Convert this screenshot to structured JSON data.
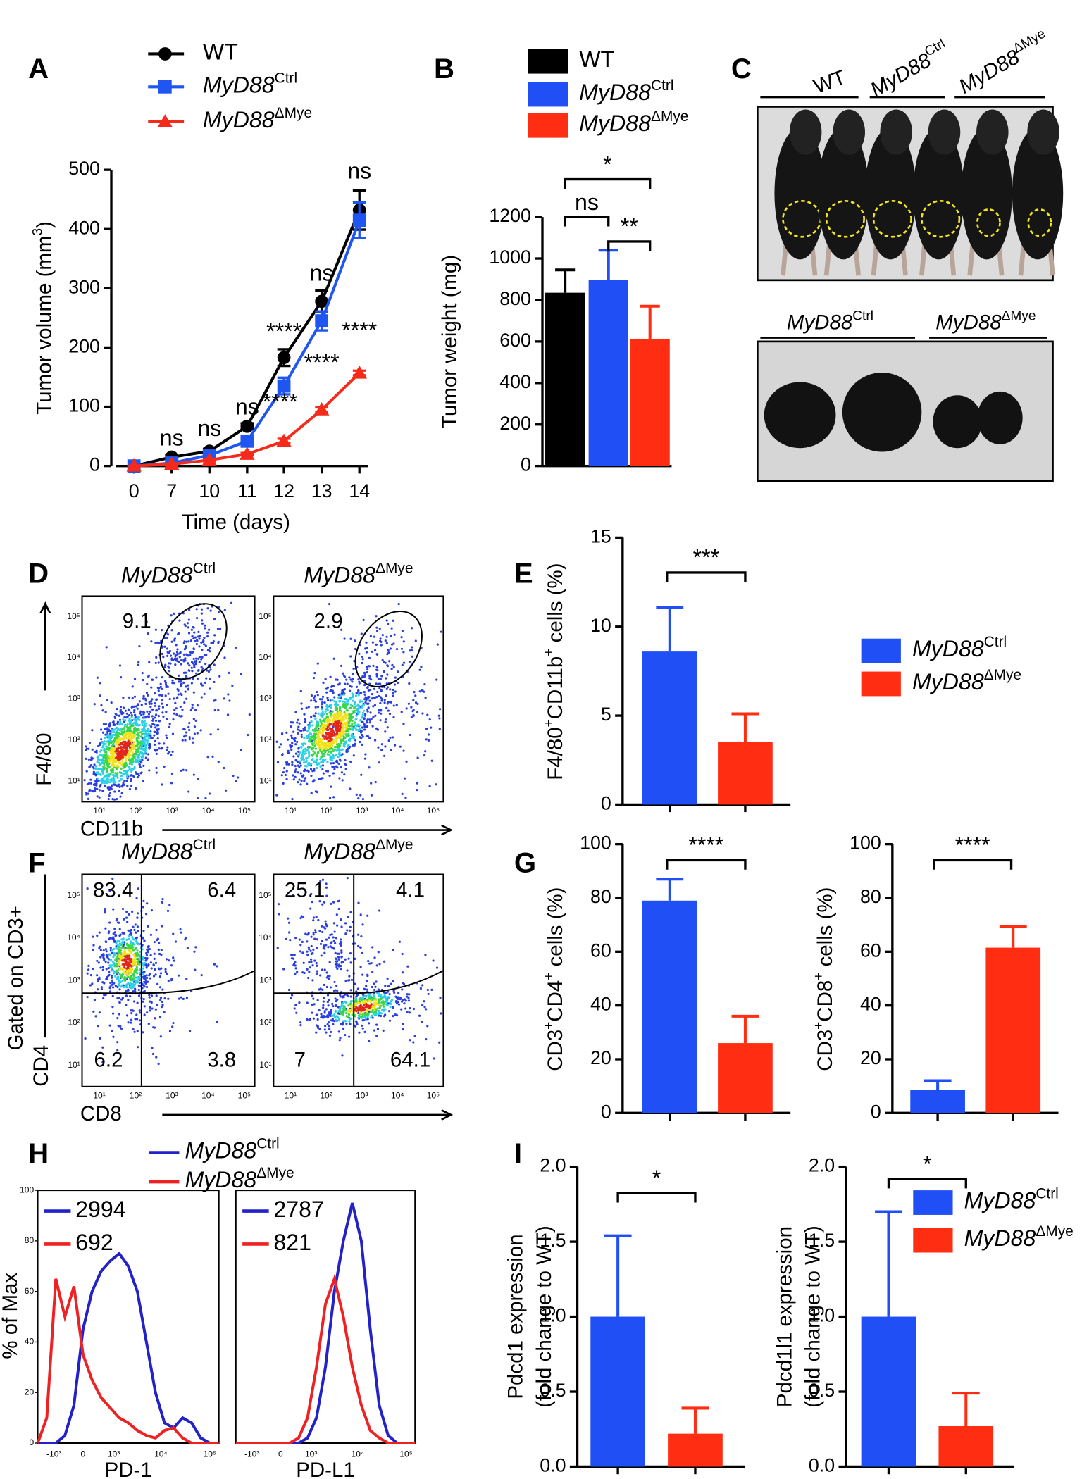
{
  "chart_data": [
    {
      "panel": "A",
      "type": "line",
      "xlabel": "Time (days)",
      "ylabel": [
        "Tumor volume (mm",
        "3",
        ")"
      ],
      "categories": [
        "0",
        "7",
        "10",
        "11",
        "12",
        "13",
        "14"
      ],
      "ylim": [
        0,
        500
      ],
      "yticks": [
        0,
        100,
        200,
        300,
        400,
        500
      ],
      "series": [
        {
          "name": [
            "WT"
          ],
          "color": "#000000",
          "marker": "circle",
          "values": [
            0,
            15,
            25,
            67,
            183,
            278,
            432
          ],
          "errors": [
            0,
            3,
            4,
            5,
            14,
            18,
            33
          ]
        },
        {
          "name": [
            "MyD88",
            "Ctrl"
          ],
          "color": "#1f55f0",
          "marker": "square",
          "values": [
            0,
            5,
            18,
            42,
            135,
            245,
            415
          ],
          "errors": [
            0,
            2,
            3,
            4,
            14,
            16,
            30
          ]
        },
        {
          "name": [
            "MyD88",
            "ΔMye"
          ],
          "color": "#f52a1a",
          "marker": "triangle",
          "values": [
            0,
            3,
            10,
            20,
            42,
            95,
            157
          ],
          "errors": [
            0,
            1,
            2,
            2,
            4,
            4,
            4
          ]
        }
      ],
      "annotations": [
        "ns",
        "ns",
        "ns",
        "****",
        "ns",
        "ns",
        "****",
        "****",
        "****"
      ]
    },
    {
      "panel": "B",
      "type": "bar",
      "ylabel": [
        "Tumor weight (mg)"
      ],
      "ylim": [
        0,
        1200
      ],
      "yticks": [
        0,
        200,
        400,
        600,
        800,
        1000,
        1200
      ],
      "legend": true,
      "series": [
        {
          "name": [
            "WT"
          ],
          "color": "#000000",
          "values": [
            835
          ],
          "errors": [
            110
          ]
        },
        {
          "name": [
            "MyD88",
            "Ctrl"
          ],
          "color": "#1f4ff5",
          "values": [
            895
          ],
          "errors": [
            145
          ]
        },
        {
          "name": [
            "MyD88",
            "ΔMye"
          ],
          "color": "#ff2d12",
          "values": [
            610
          ],
          "errors": [
            160
          ]
        }
      ],
      "annotations": [
        "*",
        "ns",
        "**"
      ]
    },
    {
      "panel": "C",
      "type": "photo",
      "top_labels": [
        [
          "WT"
        ],
        [
          "MyD88",
          "Ctrl"
        ],
        [
          "MyD88",
          "ΔMye"
        ]
      ],
      "bottom_labels": [
        [
          "MyD88",
          "Ctrl"
        ],
        [
          "MyD88",
          "ΔMye"
        ]
      ]
    },
    {
      "panel": "D",
      "type": "flow",
      "titles": [
        [
          "MyD88",
          "Ctrl"
        ],
        [
          "MyD88",
          "ΔMye"
        ]
      ],
      "gates": [
        9.1,
        2.9
      ],
      "xlabel": "CD11b",
      "ylabel": "F4/80",
      "ticks": [
        "10¹",
        "10²",
        "10³",
        "10⁴",
        "10⁵"
      ]
    },
    {
      "panel": "E",
      "type": "bar",
      "ylabel": [
        "F4/80",
        "+",
        "CD11b",
        "+",
        " cells (%)"
      ],
      "ylim": [
        0,
        15
      ],
      "yticks": [
        0,
        5,
        10,
        15
      ],
      "legend": true,
      "series": [
        {
          "name": [
            "MyD88",
            "Ctrl"
          ],
          "color": "#1f4ff5",
          "values": [
            8.6
          ],
          "errors": [
            2.5
          ]
        },
        {
          "name": [
            "MyD88",
            "ΔMye"
          ],
          "color": "#ff2d12",
          "values": [
            3.5
          ],
          "errors": [
            1.6
          ]
        }
      ],
      "annotations": [
        "***"
      ]
    },
    {
      "panel": "F",
      "type": "flow",
      "titles": [
        [
          "MyD88",
          "Ctrl"
        ],
        [
          "MyD88",
          "ΔMye"
        ]
      ],
      "quadrants": [
        [
          83.4,
          6.4,
          6.2,
          3.8
        ],
        [
          25.1,
          4.1,
          7,
          64.1
        ]
      ],
      "xlabel": "CD8",
      "ylabel": [
        "Gated on CD3+",
        "CD4"
      ],
      "ticks": [
        "10¹",
        "10²",
        "10³",
        "10⁴",
        "10⁵"
      ]
    },
    {
      "panel": "G",
      "type": "bar",
      "ylabel": [
        "CD3",
        "+",
        "CD4",
        "+",
        " cells (%)"
      ],
      "ylim": [
        0,
        100
      ],
      "yticks": [
        0,
        20,
        40,
        60,
        80,
        100
      ],
      "legend": false,
      "series": [
        {
          "name": [
            "MyD88",
            "Ctrl"
          ],
          "color": "#1f4ff5",
          "values": [
            79
          ],
          "errors": [
            8
          ]
        },
        {
          "name": [
            "MyD88",
            "ΔMye"
          ],
          "color": "#ff2d12",
          "values": [
            26
          ],
          "errors": [
            10
          ]
        }
      ],
      "annotations": [
        "****"
      ]
    },
    {
      "type": "bar",
      "ylabel": [
        "CD3",
        "+",
        "CD8",
        "+",
        " cells (%)"
      ],
      "ylim": [
        0,
        100
      ],
      "yticks": [
        0,
        20,
        40,
        60,
        80,
        100
      ],
      "legend": false,
      "series": [
        {
          "name": [
            "MyD88",
            "Ctrl"
          ],
          "color": "#1f4ff5",
          "values": [
            8.5
          ],
          "errors": [
            3.5
          ]
        },
        {
          "name": [
            "MyD88",
            "ΔMye"
          ],
          "color": "#ff2d12",
          "values": [
            61.5
          ],
          "errors": [
            8
          ]
        }
      ],
      "annotations": [
        "****"
      ]
    },
    {
      "panel": "H",
      "type": "histogram-overlay",
      "ylabel": "% of Max",
      "ylim": [
        0,
        100
      ],
      "yticks": [
        0,
        20,
        40,
        60,
        80,
        100
      ],
      "xticks": [
        "-10³",
        "0",
        "10³",
        "10⁴",
        "10⁵"
      ],
      "series": [
        {
          "name": [
            "MyD88",
            "Ctrl"
          ],
          "color": "#2222c8"
        },
        {
          "name": [
            "MyD88",
            "ΔMye"
          ],
          "color": "#ee2222"
        }
      ],
      "plots": [
        {
          "xlabel": "PD-1",
          "labels": [
            2994,
            692
          ],
          "values": [
            [
              0,
              0,
              0,
              3,
              15,
              45,
              60,
              68,
              72,
              75,
              70,
              60,
              40,
              20,
              8,
              6,
              10,
              8,
              2,
              0,
              0
            ],
            [
              0,
              10,
              65,
              50,
              62,
              35,
              25,
              18,
              14,
              10,
              8,
              5,
              3,
              2,
              5,
              6,
              2,
              0,
              0,
              0,
              0
            ]
          ]
        },
        {
          "xlabel": "PD-L1",
          "labels": [
            2787,
            821
          ],
          "values": [
            [
              0,
              0,
              0,
              0,
              0,
              0,
              0,
              0,
              2,
              10,
              30,
              60,
              80,
              95,
              80,
              45,
              15,
              3,
              0,
              0,
              0
            ],
            [
              0,
              0,
              0,
              0,
              0,
              0,
              0,
              2,
              10,
              30,
              55,
              65,
              50,
              30,
              15,
              5,
              2,
              0,
              0,
              0,
              0
            ]
          ]
        }
      ]
    },
    {
      "panel": "I",
      "type": "bar",
      "ylabel": [
        "Pdcd1 expression",
        "(fold change to WT)"
      ],
      "ylim": [
        0,
        2
      ],
      "yticks": [
        {
          "value": 0,
          "label": "0.0"
        },
        0.5,
        {
          "value": 1,
          "label": "1.0"
        },
        1.5,
        {
          "value": 2,
          "label": "2.0"
        }
      ],
      "legend": false,
      "series": [
        {
          "name": [
            "MyD88",
            "Ctrl"
          ],
          "color": "#1f4ff5",
          "values": [
            1.0
          ],
          "errors": [
            0.54
          ]
        },
        {
          "name": [
            "MyD88",
            "ΔMye"
          ],
          "color": "#ff2d12",
          "values": [
            0.22
          ],
          "errors": [
            0.17
          ]
        }
      ],
      "annotations": [
        "*"
      ]
    },
    {
      "type": "bar",
      "ylabel": [
        "Pdcd1l1 expression",
        "(fold change to WT)"
      ],
      "ylim": [
        0,
        2
      ],
      "yticks": [
        {
          "value": 0,
          "label": "0.0"
        },
        0.5,
        {
          "value": 1,
          "label": "1.0"
        },
        1.5,
        {
          "value": 2,
          "label": "2.0"
        }
      ],
      "legend": true,
      "series": [
        {
          "name": [
            "MyD88",
            "Ctrl"
          ],
          "color": "#1f4ff5",
          "values": [
            1.0
          ],
          "errors": [
            0.7
          ]
        },
        {
          "name": [
            "MyD88",
            "ΔMye"
          ],
          "color": "#ff2d12",
          "values": [
            0.27
          ],
          "errors": [
            0.22
          ]
        }
      ],
      "annotations": [
        "*"
      ]
    }
  ]
}
